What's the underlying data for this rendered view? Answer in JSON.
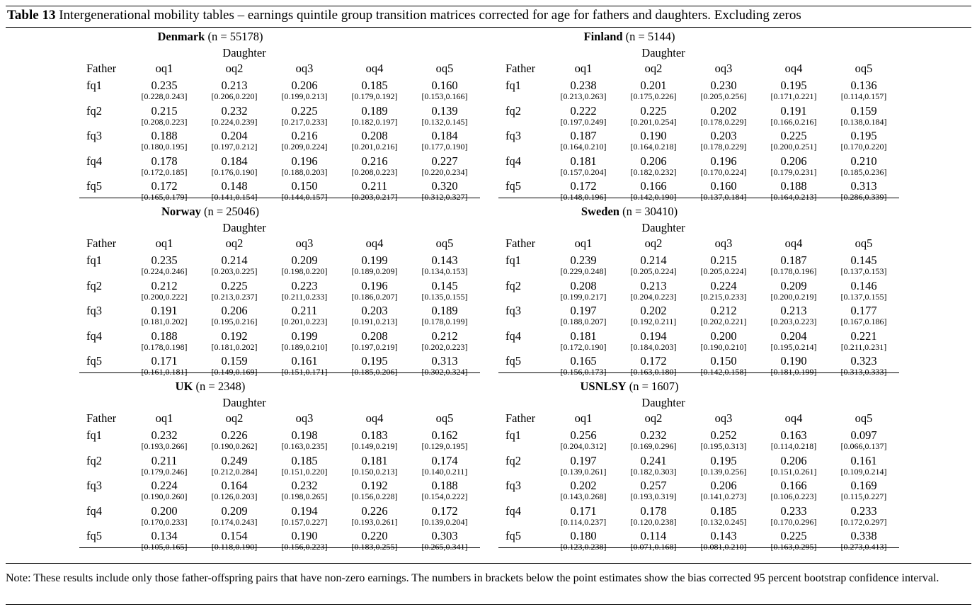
{
  "caption": {
    "label": "Table 13",
    "text": "Intergenerational mobility tables – earnings quintile group transition matrices corrected for age for fathers and daughters. Excluding zeros"
  },
  "offspring_label": "Daughter",
  "row_header_label": "Father",
  "columns": [
    "oq1",
    "oq2",
    "oq3",
    "oq4",
    "oq5"
  ],
  "rows": [
    "fq1",
    "fq2",
    "fq3",
    "fq4",
    "fq5"
  ],
  "panels": [
    {
      "country": "Denmark",
      "n": "(n = 55178)",
      "values": [
        [
          "0.235",
          "0.213",
          "0.206",
          "0.185",
          "0.160"
        ],
        [
          "0.215",
          "0.232",
          "0.225",
          "0.189",
          "0.139"
        ],
        [
          "0.188",
          "0.204",
          "0.216",
          "0.208",
          "0.184"
        ],
        [
          "0.178",
          "0.184",
          "0.196",
          "0.216",
          "0.227"
        ],
        [
          "0.172",
          "0.148",
          "0.150",
          "0.211",
          "0.320"
        ]
      ],
      "ci": [
        [
          "[0.228,0.243]",
          "[0.206,0.220]",
          "[0.199,0.213]",
          "[0.179,0.192]",
          "[0.153,0.166]"
        ],
        [
          "[0.208,0.223]",
          "[0.224,0.239]",
          "[0.217,0.233]",
          "[0.182,0.197]",
          "[0.132,0.145]"
        ],
        [
          "[0.180,0.195]",
          "[0.197,0.212]",
          "[0.209,0.224]",
          "[0.201,0.216]",
          "[0.177,0.190]"
        ],
        [
          "[0.172,0.185]",
          "[0.176,0.190]",
          "[0.188,0.203]",
          "[0.208,0.223]",
          "[0.220,0.234]"
        ],
        [
          "[0.165,0.179]",
          "[0.141,0.154]",
          "[0.144,0.157]",
          "[0.203,0.217]",
          "[0.312,0.327]"
        ]
      ]
    },
    {
      "country": "Finland",
      "n": "(n = 5144)",
      "values": [
        [
          "0.238",
          "0.201",
          "0.230",
          "0.195",
          "0.136"
        ],
        [
          "0.222",
          "0.225",
          "0.202",
          "0.191",
          "0.159"
        ],
        [
          "0.187",
          "0.190",
          "0.203",
          "0.225",
          "0.195"
        ],
        [
          "0.181",
          "0.206",
          "0.196",
          "0.206",
          "0.210"
        ],
        [
          "0.172",
          "0.166",
          "0.160",
          "0.188",
          "0.313"
        ]
      ],
      "ci": [
        [
          "[0.213,0.263]",
          "[0.175,0.226]",
          "[0.205,0.256]",
          "[0.171,0.221]",
          "[0.114,0.157]"
        ],
        [
          "[0.197,0.249]",
          "[0.201,0.254]",
          "[0.178,0.229]",
          "[0.166,0.216]",
          "[0.138,0.184]"
        ],
        [
          "[0.164,0.210]",
          "[0.164,0.218]",
          "[0.178,0.229]",
          "[0.200,0.251]",
          "[0.170,0.220]"
        ],
        [
          "[0.157,0.204]",
          "[0.182,0.232]",
          "[0.170,0.224]",
          "[0.179,0.231]",
          "[0.185,0.236]"
        ],
        [
          "[0.148,0.196]",
          "[0.142,0.190]",
          "[0.137,0.184]",
          "[0.164,0.213]",
          "[0.286,0.339]"
        ]
      ]
    },
    {
      "country": "Norway",
      "n": "(n = 25046)",
      "values": [
        [
          "0.235",
          "0.214",
          "0.209",
          "0.199",
          "0.143"
        ],
        [
          "0.212",
          "0.225",
          "0.223",
          "0.196",
          "0.145"
        ],
        [
          "0.191",
          "0.206",
          "0.211",
          "0.203",
          "0.189"
        ],
        [
          "0.188",
          "0.192",
          "0.199",
          "0.208",
          "0.212"
        ],
        [
          "0.171",
          "0.159",
          "0.161",
          "0.195",
          "0.313"
        ]
      ],
      "ci": [
        [
          "[0.224,0.246]",
          "[0.203,0.225]",
          "[0.198,0.220]",
          "[0.189,0.209]",
          "[0.134,0.153]"
        ],
        [
          "[0.200,0.222]",
          "[0.213,0.237]",
          "[0.211,0.233]",
          "[0.186,0.207]",
          "[0.135,0.155]"
        ],
        [
          "[0.181,0.202]",
          "[0.195,0.216]",
          "[0.201,0.223]",
          "[0.191,0.213]",
          "[0.178,0.199]"
        ],
        [
          "[0.178,0.198]",
          "[0.181,0.202]",
          "[0.189,0.210]",
          "[0.197,0.219]",
          "[0.202,0.223]"
        ],
        [
          "[0.161,0.181]",
          "[0.149,0.169]",
          "[0.151,0.171]",
          "[0.185,0.206]",
          "[0.302,0.324]"
        ]
      ]
    },
    {
      "country": "Sweden",
      "n": "(n = 30410)",
      "values": [
        [
          "0.239",
          "0.214",
          "0.215",
          "0.187",
          "0.145"
        ],
        [
          "0.208",
          "0.213",
          "0.224",
          "0.209",
          "0.146"
        ],
        [
          "0.197",
          "0.202",
          "0.212",
          "0.213",
          "0.177"
        ],
        [
          "0.181",
          "0.194",
          "0.200",
          "0.204",
          "0.221"
        ],
        [
          "0.165",
          "0.172",
          "0.150",
          "0.190",
          "0.323"
        ]
      ],
      "ci": [
        [
          "[0.229,0.248]",
          "[0.205,0.224]",
          "[0.205,0.224]",
          "[0.178,0.196]",
          "[0.137,0.153]"
        ],
        [
          "[0.199,0.217]",
          "[0.204,0.223]",
          "[0.215,0.233]",
          "[0.200,0.219]",
          "[0.137,0.155]"
        ],
        [
          "[0.188,0.207]",
          "[0.192,0.211]",
          "[0.202,0.221]",
          "[0.203,0.223]",
          "[0.167,0.186]"
        ],
        [
          "[0.172,0.190]",
          "[0.184,0.203]",
          "[0.190,0.210]",
          "[0.195,0.214]",
          "[0.211,0.231]"
        ],
        [
          "[0.156,0.173]",
          "[0.163,0.180]",
          "[0.142,0.158]",
          "[0.181,0.199]",
          "[0.313,0.333]"
        ]
      ]
    },
    {
      "country": "UK",
      "n": "(n = 2348)",
      "values": [
        [
          "0.232",
          "0.226",
          "0.198",
          "0.183",
          "0.162"
        ],
        [
          "0.211",
          "0.249",
          "0.185",
          "0.181",
          "0.174"
        ],
        [
          "0.224",
          "0.164",
          "0.232",
          "0.192",
          "0.188"
        ],
        [
          "0.200",
          "0.209",
          "0.194",
          "0.226",
          "0.172"
        ],
        [
          "0.134",
          "0.154",
          "0.190",
          "0.220",
          "0.303"
        ]
      ],
      "ci": [
        [
          "[0.193,0.266]",
          "[0.190,0.262]",
          "[0.163,0.235]",
          "[0.149,0.219]",
          "[0.129,0.195]"
        ],
        [
          "[0.179,0.246]",
          "[0.212,0.284]",
          "[0.151,0.220]",
          "[0.150,0.213]",
          "[0.140,0.211]"
        ],
        [
          "[0.190,0.260]",
          "[0.126,0.203]",
          "[0.198,0.265]",
          "[0.156,0.228]",
          "[0.154,0.222]"
        ],
        [
          "[0.170,0.233]",
          "[0.174,0.243]",
          "[0.157,0.227]",
          "[0.193,0.261]",
          "[0.139,0.204]"
        ],
        [
          "[0.105,0.165]",
          "[0.118,0.190]",
          "[0.156,0.223]",
          "[0.183,0.255]",
          "[0.265,0.341]"
        ]
      ]
    },
    {
      "country": "USNLSY",
      "n": "(n = 1607)",
      "values": [
        [
          "0.256",
          "0.232",
          "0.252",
          "0.163",
          "0.097"
        ],
        [
          "0.197",
          "0.241",
          "0.195",
          "0.206",
          "0.161"
        ],
        [
          "0.202",
          "0.257",
          "0.206",
          "0.166",
          "0.169"
        ],
        [
          "0.171",
          "0.178",
          "0.185",
          "0.233",
          "0.233"
        ],
        [
          "0.180",
          "0.114",
          "0.143",
          "0.225",
          "0.338"
        ]
      ],
      "ci": [
        [
          "[0.204,0.312]",
          "[0.169,0.296]",
          "[0.195,0.313]",
          "[0.114,0.218]",
          "[0.066,0.137]"
        ],
        [
          "[0.139,0.261]",
          "[0.182,0.303]",
          "[0.139,0.256]",
          "[0.151,0.261]",
          "[0.109,0.214]"
        ],
        [
          "[0.143,0.268]",
          "[0.193,0.319]",
          "[0.141,0.273]",
          "[0.106,0.223]",
          "[0.115,0.227]"
        ],
        [
          "[0.114,0.237]",
          "[0.120,0.238]",
          "[0.132,0.245]",
          "[0.170,0.296]",
          "[0.172,0.297]"
        ],
        [
          "[0.123,0.238]",
          "[0.071,0.168]",
          "[0.081,0.210]",
          "[0.163,0.295]",
          "[0.273,0.413]"
        ]
      ]
    }
  ],
  "note": "Note:  These results include only those father-offspring pairs that have non-zero earnings.  The numbers in brackets below the point estimates show the bias corrected 95 percent bootstrap confidence interval."
}
